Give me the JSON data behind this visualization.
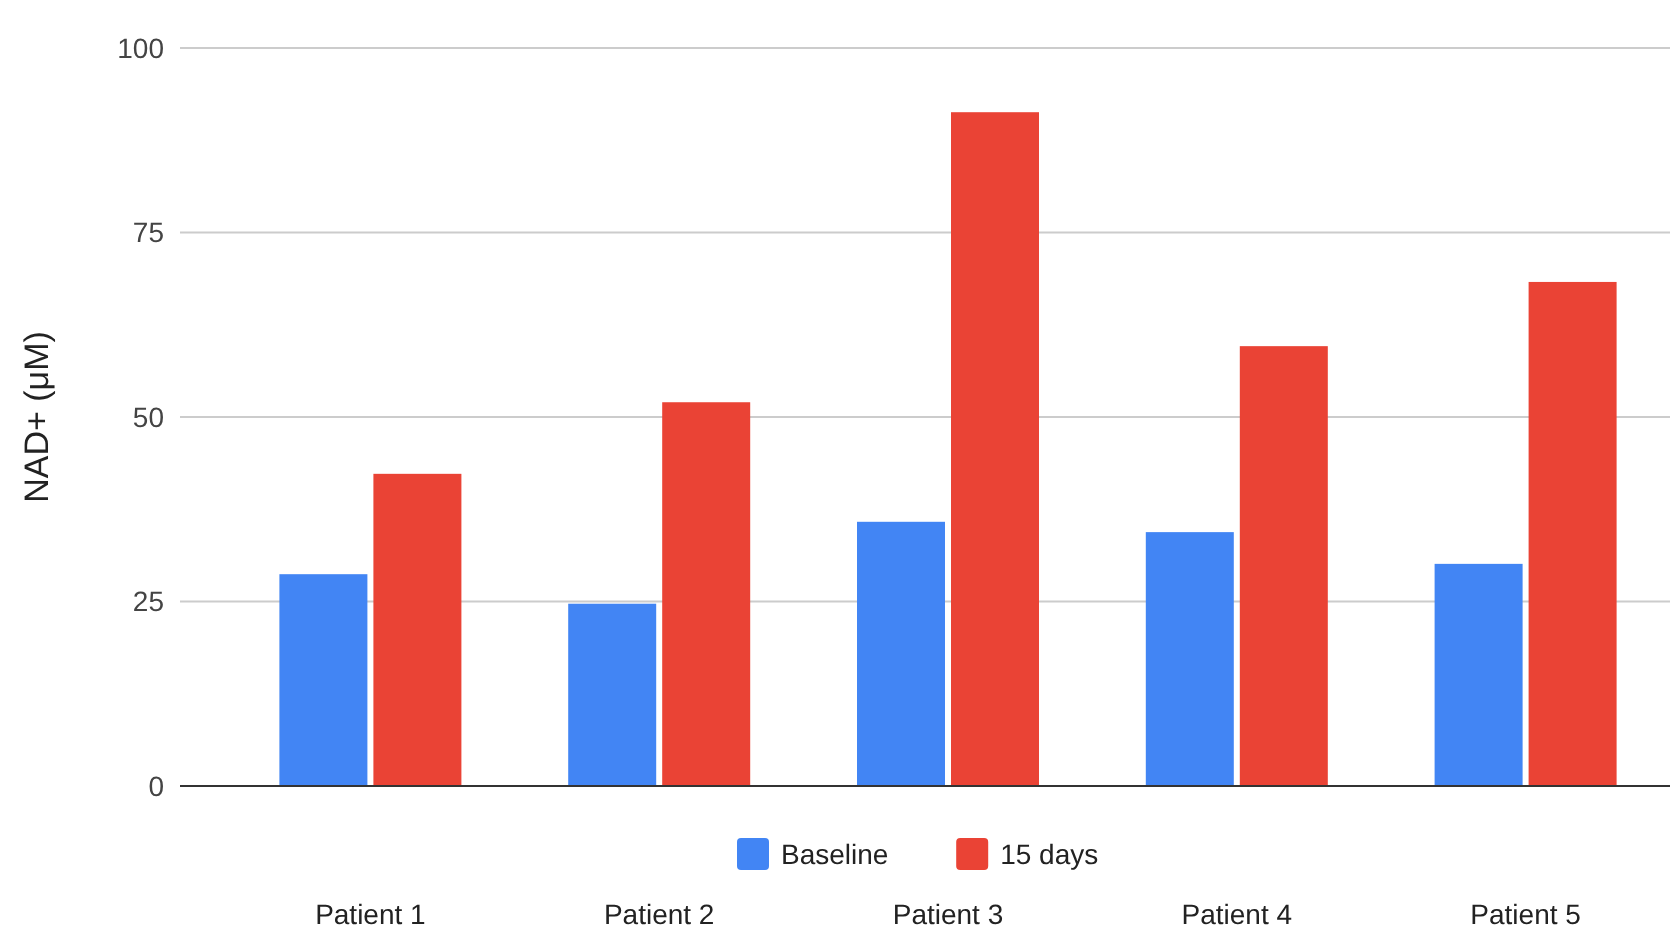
{
  "chart_data": {
    "type": "bar",
    "ylabel": "NAD+ (μM)",
    "categories": [
      "Patient 1",
      "Patient 2",
      "Patient 3",
      "Patient 4",
      "Patient 5"
    ],
    "series": [
      {
        "name": "Baseline",
        "color": "#4285f4",
        "values": [
          28.7,
          24.7,
          35.8,
          34.4,
          30.1
        ]
      },
      {
        "name": "15 days",
        "color": "#ea4335",
        "values": [
          42.3,
          52.0,
          91.3,
          59.6,
          68.3
        ]
      }
    ],
    "ylim": [
      0,
      100
    ],
    "yticks": [
      0,
      25,
      50,
      75,
      100
    ],
    "grid": "y",
    "legend": "bottom"
  }
}
